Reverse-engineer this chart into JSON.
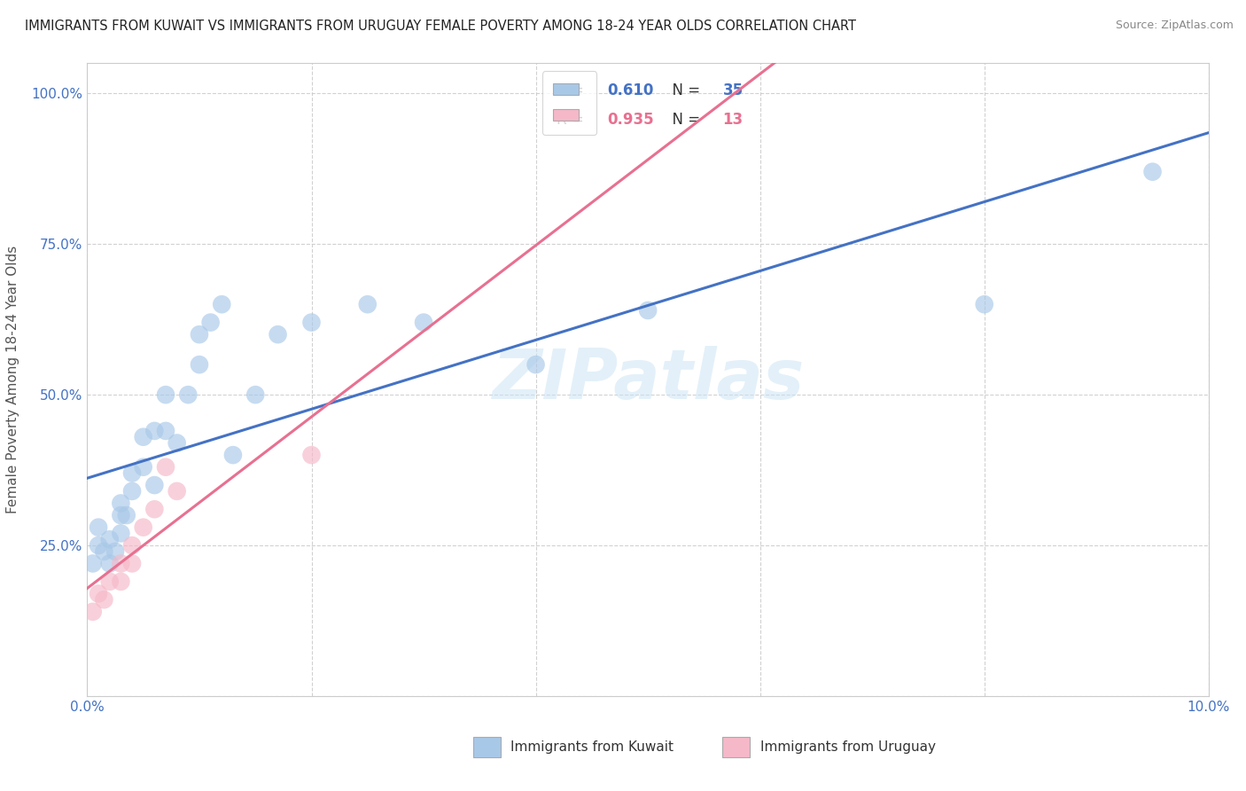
{
  "title": "IMMIGRANTS FROM KUWAIT VS IMMIGRANTS FROM URUGUAY FEMALE POVERTY AMONG 18-24 YEAR OLDS CORRELATION CHART",
  "source": "Source: ZipAtlas.com",
  "ylabel": "Female Poverty Among 18-24 Year Olds",
  "xlim": [
    0.0,
    0.1
  ],
  "ylim": [
    0.0,
    1.05
  ],
  "xticks": [
    0.0,
    0.02,
    0.04,
    0.06,
    0.08,
    0.1
  ],
  "xticklabels": [
    "0.0%",
    "",
    "",
    "",
    "",
    "10.0%"
  ],
  "yticks": [
    0.0,
    0.25,
    0.5,
    0.75,
    1.0
  ],
  "yticklabels": [
    "",
    "25.0%",
    "50.0%",
    "75.0%",
    "100.0%"
  ],
  "kuwait_R": 0.61,
  "kuwait_N": 35,
  "uruguay_R": 0.935,
  "uruguay_N": 13,
  "kuwait_color": "#a8c8e8",
  "uruguay_color": "#f5b8c8",
  "kuwait_line_color": "#4472c4",
  "uruguay_line_color": "#e87090",
  "watermark": "ZIPatlas",
  "kuwait_x": [
    0.0005,
    0.001,
    0.001,
    0.0015,
    0.002,
    0.002,
    0.0025,
    0.003,
    0.003,
    0.003,
    0.0035,
    0.004,
    0.004,
    0.005,
    0.005,
    0.006,
    0.006,
    0.007,
    0.007,
    0.008,
    0.009,
    0.01,
    0.01,
    0.011,
    0.012,
    0.013,
    0.015,
    0.017,
    0.02,
    0.025,
    0.03,
    0.04,
    0.05,
    0.08,
    0.095
  ],
  "kuwait_y": [
    0.22,
    0.25,
    0.28,
    0.24,
    0.22,
    0.26,
    0.24,
    0.27,
    0.3,
    0.32,
    0.3,
    0.34,
    0.37,
    0.38,
    0.43,
    0.35,
    0.44,
    0.44,
    0.5,
    0.42,
    0.5,
    0.55,
    0.6,
    0.62,
    0.65,
    0.4,
    0.5,
    0.6,
    0.62,
    0.65,
    0.62,
    0.55,
    0.64,
    0.65,
    0.87
  ],
  "uruguay_x": [
    0.0005,
    0.001,
    0.0015,
    0.002,
    0.003,
    0.003,
    0.004,
    0.004,
    0.005,
    0.006,
    0.007,
    0.008,
    0.02
  ],
  "uruguay_y": [
    0.14,
    0.17,
    0.16,
    0.19,
    0.19,
    0.22,
    0.22,
    0.25,
    0.28,
    0.31,
    0.38,
    0.34,
    0.4
  ]
}
